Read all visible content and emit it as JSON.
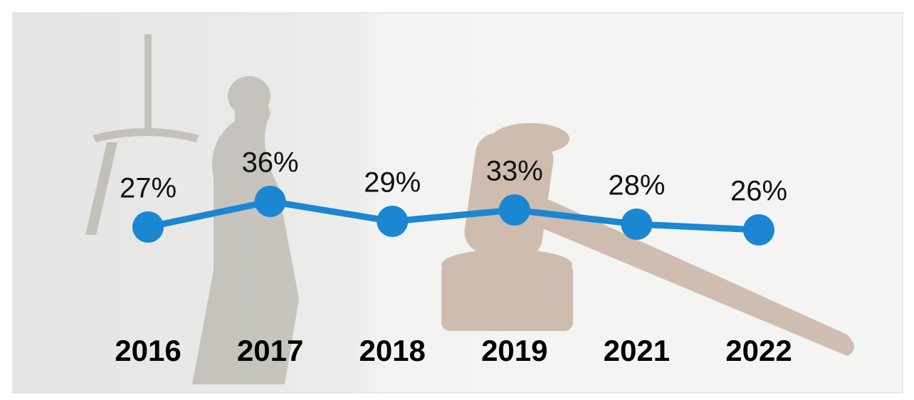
{
  "chart_data": {
    "type": "line",
    "categories": [
      "2016",
      "2017",
      "2018",
      "2019",
      "2021",
      "2022"
    ],
    "values": [
      27,
      36,
      29,
      33,
      28,
      26
    ],
    "value_labels": [
      "27%",
      "36%",
      "29%",
      "33%",
      "28%",
      "26%"
    ],
    "color": "#1b86d2"
  }
}
